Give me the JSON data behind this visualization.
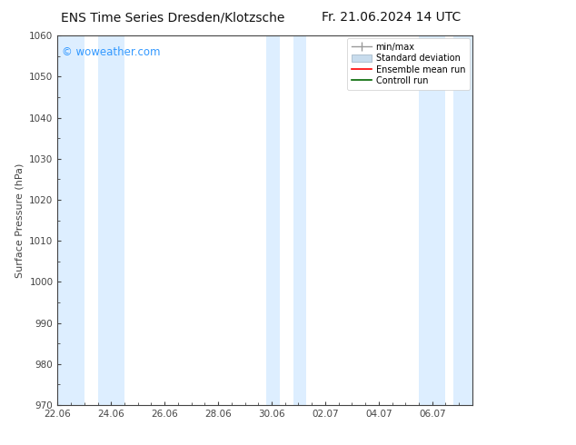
{
  "title_left": "ENS Time Series Dresden/Klotzsche",
  "title_right": "Fr. 21.06.2024 14 UTC",
  "ylabel": "Surface Pressure (hPa)",
  "ylim": [
    970,
    1060
  ],
  "yticks": [
    970,
    980,
    990,
    1000,
    1010,
    1020,
    1030,
    1040,
    1050,
    1060
  ],
  "x_tick_labels": [
    "22.06",
    "24.06",
    "26.06",
    "28.06",
    "30.06",
    "02.07",
    "04.07",
    "06.07"
  ],
  "x_tick_positions": [
    0,
    2,
    4,
    6,
    8,
    10,
    12,
    14
  ],
  "x_min": 0,
  "x_max": 15.5,
  "shaded_bands": [
    {
      "x_start": 0.0,
      "x_end": 1.0
    },
    {
      "x_start": 1.5,
      "x_end": 2.5
    },
    {
      "x_start": 7.8,
      "x_end": 8.3
    },
    {
      "x_start": 8.8,
      "x_end": 9.3
    },
    {
      "x_start": 13.5,
      "x_end": 14.5
    },
    {
      "x_start": 14.8,
      "x_end": 15.5
    }
  ],
  "band_color": "#ddeeff",
  "band_alpha": 1.0,
  "watermark_text": "© woweather.com",
  "watermark_color": "#3399ff",
  "legend_items": [
    {
      "label": "min/max",
      "color": "#aaaaaa",
      "type": "errorbar"
    },
    {
      "label": "Standard deviation",
      "color": "#c8d8e8",
      "type": "box"
    },
    {
      "label": "Ensemble mean run",
      "color": "red",
      "type": "line"
    },
    {
      "label": "Controll run",
      "color": "green",
      "type": "line"
    }
  ],
  "bg_color": "#ffffff",
  "plot_bg_color": "#ffffff",
  "tick_color": "#444444",
  "spine_color": "#444444",
  "title_fontsize": 10,
  "label_fontsize": 8,
  "tick_fontsize": 7.5,
  "legend_fontsize": 7,
  "watermark_fontsize": 8.5
}
